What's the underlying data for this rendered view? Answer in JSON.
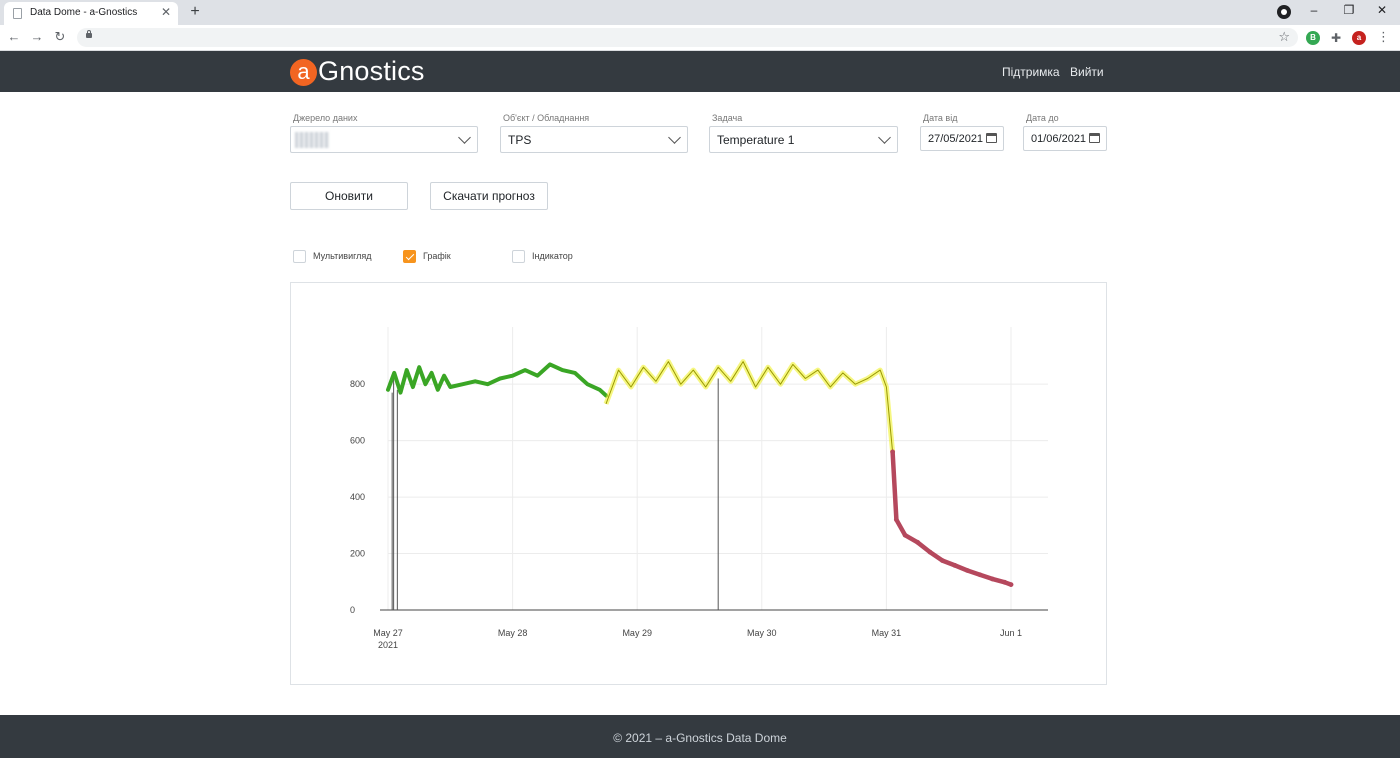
{
  "browser": {
    "tab_title": "Data Dome - a-Gnostics",
    "tab_close": "✕",
    "new_tab": "+",
    "url": "",
    "window_controls": {
      "minimize": "–",
      "restore": "❐",
      "close": "✕"
    },
    "extension_badge": "B",
    "profile_initial": "a",
    "icons": [
      "back-arrow-icon",
      "forward-arrow-icon",
      "reload-icon",
      "lock-icon",
      "star-icon",
      "puzzle-icon",
      "menu-dots-icon"
    ]
  },
  "header": {
    "logo_letter": "a",
    "logo_text": "Gnostics",
    "logo_accent": "#f26522",
    "nav": {
      "support": "Підтримка",
      "logout": "Вийти"
    }
  },
  "filters": {
    "source": {
      "label": "Джерело даних",
      "value": ""
    },
    "object": {
      "label": "Об'єкт / Обладнання",
      "value": "TPS"
    },
    "task": {
      "label": "Задача",
      "value": "Temperature 1"
    },
    "date_from": {
      "label": "Дата від",
      "value": "27/05/2021"
    },
    "date_to": {
      "label": "Дата до",
      "value": "01/06/2021"
    }
  },
  "actions": {
    "refresh": "Оновити",
    "download_forecast": "Скачати прогноз"
  },
  "view_options": [
    {
      "label": "Мультивигляд",
      "checked": false
    },
    {
      "label": "Графік",
      "checked": true
    },
    {
      "label": "Індикатор",
      "checked": false
    }
  ],
  "chart_data": {
    "type": "line",
    "title": "",
    "xlabel": "",
    "ylabel": "",
    "x_range": [
      "2021-05-27",
      "2021-06-01"
    ],
    "ylim": [
      0,
      960
    ],
    "y_ticks": [
      0,
      200,
      400,
      600,
      800
    ],
    "x_ticks": [
      {
        "date": "2021-05-27",
        "label": "May 27",
        "sublabel": "2021"
      },
      {
        "date": "2021-05-28",
        "label": "May 28",
        "sublabel": ""
      },
      {
        "date": "2021-05-29",
        "label": "May 29",
        "sublabel": ""
      },
      {
        "date": "2021-05-30",
        "label": "May 30",
        "sublabel": ""
      },
      {
        "date": "2021-05-31",
        "label": "May 31",
        "sublabel": ""
      },
      {
        "date": "2021-06-01",
        "label": "Jun 1",
        "sublabel": ""
      }
    ],
    "grid": true,
    "legend": "none",
    "drop_lines": [
      {
        "date": "2021-05-27T00:48",
        "value": 770
      },
      {
        "date": "2021-05-27T01:05",
        "value": 820
      },
      {
        "date": "2021-05-27T01:48",
        "value": 780
      },
      {
        "date": "2021-05-29T15:36",
        "value": 820
      }
    ],
    "series": [
      {
        "color": "#3aa625",
        "x": [
          "2021-05-27T00:00",
          "2021-05-27T01:12",
          "2021-05-27T02:24",
          "2021-05-27T03:36",
          "2021-05-27T04:48",
          "2021-05-27T06:00",
          "2021-05-27T07:12",
          "2021-05-27T08:24",
          "2021-05-27T09:36",
          "2021-05-27T10:48",
          "2021-05-27T12:00",
          "2021-05-27T14:24",
          "2021-05-27T16:48",
          "2021-05-27T19:12",
          "2021-05-27T21:36",
          "2021-05-28T00:00",
          "2021-05-28T02:24",
          "2021-05-28T04:48",
          "2021-05-28T07:12",
          "2021-05-28T09:36",
          "2021-05-28T12:00",
          "2021-05-28T14:24",
          "2021-05-28T16:48",
          "2021-05-28T18:00"
        ],
        "y": [
          780,
          840,
          770,
          850,
          790,
          860,
          800,
          840,
          780,
          830,
          790,
          800,
          810,
          800,
          820,
          830,
          850,
          830,
          870,
          850,
          840,
          800,
          780,
          760
        ]
      },
      {
        "color": "#eef01c",
        "x": [
          "2021-05-28T18:00",
          "2021-05-28T20:24",
          "2021-05-28T22:48",
          "2021-05-29T01:12",
          "2021-05-29T03:36",
          "2021-05-29T06:00",
          "2021-05-29T08:24",
          "2021-05-29T10:48",
          "2021-05-29T13:12",
          "2021-05-29T15:36",
          "2021-05-29T18:00",
          "2021-05-29T20:24",
          "2021-05-29T22:48",
          "2021-05-30T01:12",
          "2021-05-30T03:36",
          "2021-05-30T06:00",
          "2021-05-30T08:24",
          "2021-05-30T10:48",
          "2021-05-30T13:12",
          "2021-05-30T15:36",
          "2021-05-30T18:00",
          "2021-05-30T20:24",
          "2021-05-30T22:48",
          "2021-05-31T00:00",
          "2021-05-31T01:12"
        ],
        "y": [
          730,
          850,
          790,
          860,
          810,
          880,
          800,
          850,
          790,
          860,
          810,
          880,
          790,
          860,
          800,
          870,
          820,
          850,
          790,
          840,
          800,
          820,
          850,
          790,
          560
        ]
      },
      {
        "color": "#b5485d",
        "x": [
          "2021-05-31T01:12",
          "2021-05-31T01:55",
          "2021-05-31T03:36",
          "2021-05-31T06:00",
          "2021-05-31T08:24",
          "2021-05-31T10:48",
          "2021-05-31T13:12",
          "2021-05-31T15:36",
          "2021-05-31T18:00",
          "2021-05-31T20:24",
          "2021-05-31T22:48",
          "2021-06-01T00:00"
        ],
        "y": [
          560,
          320,
          265,
          240,
          205,
          175,
          158,
          140,
          125,
          110,
          98,
          90
        ]
      }
    ]
  },
  "footer": {
    "text": "© 2021 – a-Gnostics Data Dome"
  }
}
